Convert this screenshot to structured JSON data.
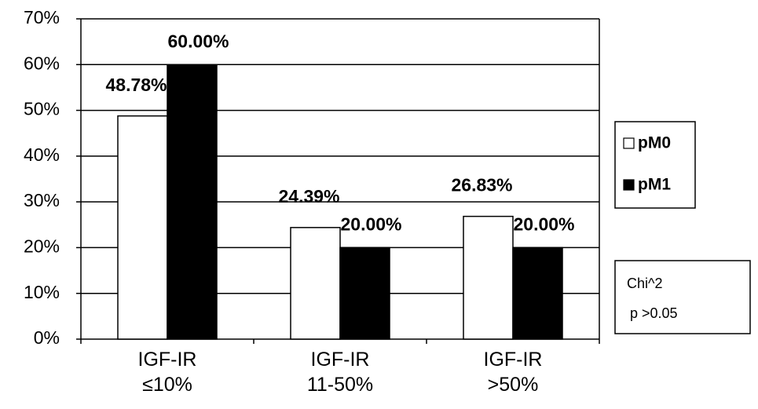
{
  "chart_data": {
    "type": "bar",
    "categories": [
      "IGF-IR\n≤10%",
      "IGF-IR\n11-50%",
      "IGF-IR\n>50%"
    ],
    "series": [
      {
        "name": "pM0",
        "color": "#ffffff",
        "values": [
          48.78,
          24.39,
          26.83
        ],
        "value_labels": [
          "48.78%",
          "24.39%",
          "26.83%"
        ]
      },
      {
        "name": "pM1",
        "color": "#000000",
        "values": [
          60,
          20,
          20
        ],
        "value_labels": [
          "60.00%",
          "20.00%",
          "20.00%"
        ]
      }
    ],
    "ylim": [
      0,
      70
    ],
    "yticks": [
      {
        "value": 0,
        "label": "0%"
      },
      {
        "value": 10,
        "label": "10%"
      },
      {
        "value": 20,
        "label": "20%"
      },
      {
        "value": 30,
        "label": "30%"
      },
      {
        "value": 40,
        "label": "40%"
      },
      {
        "value": 50,
        "label": "50%"
      },
      {
        "value": 60,
        "label": "60%"
      },
      {
        "value": 70,
        "label": "70%"
      }
    ],
    "grid": true,
    "legend": "right",
    "annotations": [
      "Chi^2",
      "p >0.05"
    ]
  }
}
